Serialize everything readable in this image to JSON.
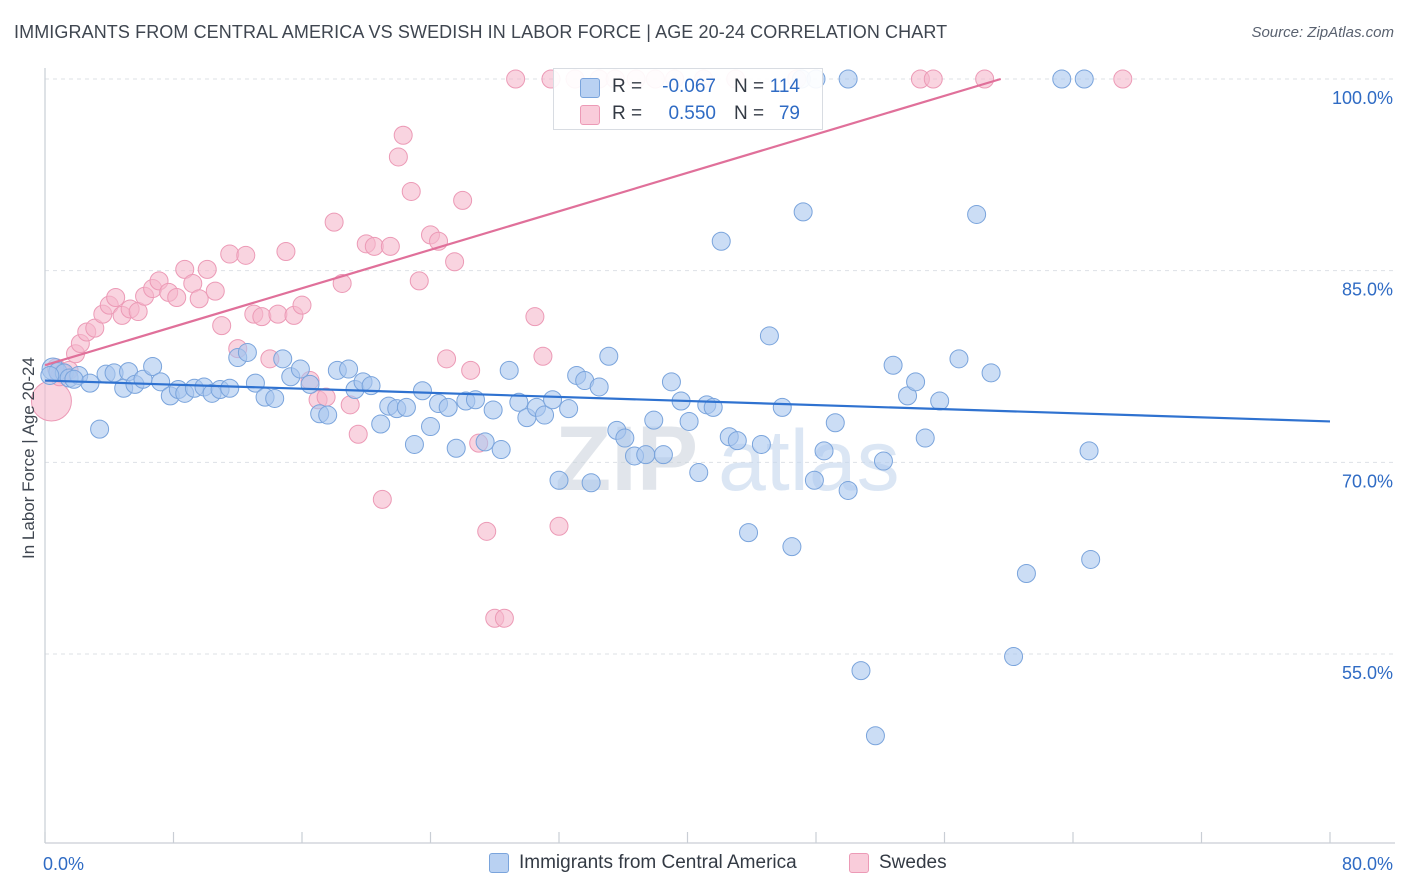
{
  "header": {
    "title": "IMMIGRANTS FROM CENTRAL AMERICA VS SWEDISH IN LABOR FORCE | AGE 20-24 CORRELATION CHART",
    "source": "Source: ZipAtlas.com"
  },
  "stats": {
    "blue": {
      "r_label": "R =",
      "r_value": "-0.067",
      "n_label": "N =",
      "n_value": "114"
    },
    "pink": {
      "r_label": "R =",
      "r_value": "0.550",
      "n_label": "N =",
      "n_value": "79"
    }
  },
  "legend": {
    "blue_label": "Immigrants from Central America",
    "pink_label": "Swedes"
  },
  "colors": {
    "blue_fill": "#a9c6ee",
    "blue_line": "#2f72d0",
    "pink_fill": "#f5b8cc",
    "pink_line": "#e0709a",
    "tick_text": "#2f6bc4"
  },
  "chart_data": {
    "type": "scatter",
    "xlabel": "",
    "ylabel": "In Labor Force | Age 20-24",
    "xlim": [
      0,
      80
    ],
    "ylim": [
      40,
      100
    ],
    "x_tick_labels": [
      {
        "value": 0,
        "label": "0.0%"
      },
      {
        "value": 80,
        "label": "80.0%"
      }
    ],
    "y_tick_labels": [
      {
        "value": 100,
        "label": "100.0%"
      },
      {
        "value": 85,
        "label": "85.0%"
      },
      {
        "value": 70,
        "label": "70.0%"
      },
      {
        "value": 55,
        "label": "55.0%"
      }
    ],
    "grid": "horizontal dashed",
    "watermark": "ZIPatlas",
    "series": [
      {
        "name": "Immigrants from Central America",
        "color": "#a9c6ee",
        "trend": {
          "x": [
            0,
            80
          ],
          "y": [
            76.4,
            73.2
          ]
        },
        "points": [
          [
            0.5,
            77.3
          ],
          [
            0.8,
            77.1
          ],
          [
            1.2,
            77.0
          ],
          [
            1.5,
            76.6
          ],
          [
            2.1,
            76.8
          ],
          [
            2.8,
            76.2
          ],
          [
            3.4,
            72.6
          ],
          [
            3.8,
            76.9
          ],
          [
            4.3,
            77.0
          ],
          [
            4.9,
            75.8
          ],
          [
            5.2,
            77.1
          ],
          [
            5.6,
            76.1
          ],
          [
            6.1,
            76.5
          ],
          [
            6.7,
            77.5
          ],
          [
            7.2,
            76.3
          ],
          [
            7.8,
            75.2
          ],
          [
            8.3,
            75.7
          ],
          [
            8.7,
            75.4
          ],
          [
            9.3,
            75.8
          ],
          [
            9.9,
            75.9
          ],
          [
            10.4,
            75.4
          ],
          [
            10.9,
            75.7
          ],
          [
            11.5,
            75.8
          ],
          [
            12.0,
            78.2
          ],
          [
            12.6,
            78.6
          ],
          [
            13.1,
            76.2
          ],
          [
            13.7,
            75.1
          ],
          [
            14.3,
            75.0
          ],
          [
            14.8,
            78.1
          ],
          [
            15.3,
            76.7
          ],
          [
            15.9,
            77.3
          ],
          [
            16.5,
            76.1
          ],
          [
            17.1,
            73.8
          ],
          [
            17.6,
            73.7
          ],
          [
            18.2,
            77.2
          ],
          [
            18.9,
            77.3
          ],
          [
            19.3,
            75.7
          ],
          [
            19.8,
            76.3
          ],
          [
            20.3,
            76.0
          ],
          [
            20.9,
            73.0
          ],
          [
            21.4,
            74.4
          ],
          [
            21.9,
            74.2
          ],
          [
            22.5,
            74.3
          ],
          [
            23.0,
            71.4
          ],
          [
            23.5,
            75.6
          ],
          [
            24.0,
            72.8
          ],
          [
            24.5,
            74.6
          ],
          [
            25.1,
            74.3
          ],
          [
            25.6,
            71.1
          ],
          [
            26.2,
            74.8
          ],
          [
            26.8,
            74.9
          ],
          [
            27.4,
            71.6
          ],
          [
            27.9,
            74.1
          ],
          [
            28.4,
            71.0
          ],
          [
            28.9,
            77.2
          ],
          [
            29.5,
            74.7
          ],
          [
            30.0,
            73.5
          ],
          [
            30.6,
            74.3
          ],
          [
            31.1,
            73.7
          ],
          [
            31.6,
            74.9
          ],
          [
            32.0,
            68.6
          ],
          [
            32.6,
            74.2
          ],
          [
            33.1,
            76.8
          ],
          [
            33.6,
            76.4
          ],
          [
            34.0,
            68.4
          ],
          [
            34.5,
            75.9
          ],
          [
            35.1,
            78.3
          ],
          [
            35.6,
            72.5
          ],
          [
            36.1,
            71.9
          ],
          [
            36.7,
            70.5
          ],
          [
            37.4,
            70.6
          ],
          [
            37.9,
            73.3
          ],
          [
            38.5,
            70.6
          ],
          [
            39.0,
            76.3
          ],
          [
            39.6,
            74.8
          ],
          [
            40.1,
            73.2
          ],
          [
            40.7,
            69.2
          ],
          [
            41.2,
            74.5
          ],
          [
            41.6,
            74.3
          ],
          [
            42.1,
            87.3
          ],
          [
            42.6,
            72.0
          ],
          [
            43.1,
            71.7
          ],
          [
            43.8,
            64.5
          ],
          [
            44.6,
            71.4
          ],
          [
            45.1,
            79.9
          ],
          [
            45.9,
            74.3
          ],
          [
            46.5,
            63.4
          ],
          [
            47.2,
            89.6
          ],
          [
            47.9,
            68.6
          ],
          [
            48.5,
            70.9
          ],
          [
            49.2,
            73.1
          ],
          [
            50.0,
            67.8
          ],
          [
            50.8,
            53.7
          ],
          [
            51.7,
            48.6
          ],
          [
            52.2,
            70.1
          ],
          [
            52.8,
            77.6
          ],
          [
            53.7,
            75.2
          ],
          [
            54.2,
            76.3
          ],
          [
            54.8,
            71.9
          ],
          [
            55.7,
            74.8
          ],
          [
            56.9,
            78.1
          ],
          [
            58.0,
            89.4
          ],
          [
            58.9,
            77.0
          ],
          [
            60.3,
            54.8
          ],
          [
            61.1,
            61.3
          ],
          [
            63.3,
            100.0
          ],
          [
            64.7,
            100.0
          ],
          [
            65.0,
            70.9
          ],
          [
            65.1,
            62.4
          ],
          [
            47.1,
            100.0
          ],
          [
            50.0,
            100.0
          ],
          [
            48.0,
            100.0
          ],
          [
            0.3,
            76.8
          ],
          [
            1.8,
            76.5
          ]
        ]
      },
      {
        "name": "Swedes",
        "color": "#f5b8cc",
        "trend": {
          "x": [
            0,
            59.5
          ],
          "y": [
            77.6,
            100.0
          ]
        },
        "points": [
          [
            0.4,
            74.8
          ],
          [
            0.7,
            77.4
          ],
          [
            1.1,
            77.0
          ],
          [
            1.5,
            77.2
          ],
          [
            1.9,
            78.5
          ],
          [
            2.2,
            79.3
          ],
          [
            2.6,
            80.2
          ],
          [
            3.1,
            80.5
          ],
          [
            3.6,
            81.6
          ],
          [
            4.0,
            82.3
          ],
          [
            4.4,
            82.9
          ],
          [
            4.8,
            81.5
          ],
          [
            5.3,
            82.0
          ],
          [
            5.8,
            81.8
          ],
          [
            6.2,
            83.0
          ],
          [
            6.7,
            83.6
          ],
          [
            7.1,
            84.2
          ],
          [
            7.7,
            83.3
          ],
          [
            8.2,
            82.9
          ],
          [
            8.7,
            85.1
          ],
          [
            9.2,
            84.0
          ],
          [
            9.6,
            82.8
          ],
          [
            10.1,
            85.1
          ],
          [
            10.6,
            83.4
          ],
          [
            11.0,
            80.7
          ],
          [
            11.5,
            86.3
          ],
          [
            12.0,
            78.9
          ],
          [
            12.5,
            86.2
          ],
          [
            13.0,
            81.6
          ],
          [
            13.5,
            81.4
          ],
          [
            14.0,
            78.1
          ],
          [
            14.5,
            81.6
          ],
          [
            15.0,
            86.5
          ],
          [
            15.5,
            81.5
          ],
          [
            16.0,
            82.3
          ],
          [
            16.5,
            76.4
          ],
          [
            17.0,
            74.9
          ],
          [
            17.5,
            75.1
          ],
          [
            18.0,
            88.8
          ],
          [
            18.5,
            84.0
          ],
          [
            19.0,
            74.5
          ],
          [
            19.5,
            72.2
          ],
          [
            20.0,
            87.1
          ],
          [
            20.5,
            86.9
          ],
          [
            21.0,
            67.1
          ],
          [
            21.5,
            86.9
          ],
          [
            22.0,
            93.9
          ],
          [
            22.3,
            95.6
          ],
          [
            22.8,
            91.2
          ],
          [
            23.3,
            84.2
          ],
          [
            24.0,
            87.8
          ],
          [
            24.5,
            87.3
          ],
          [
            25.0,
            78.1
          ],
          [
            25.5,
            85.7
          ],
          [
            26.0,
            90.5
          ],
          [
            26.5,
            77.2
          ],
          [
            27.0,
            71.5
          ],
          [
            27.5,
            64.6
          ],
          [
            28.0,
            57.8
          ],
          [
            28.6,
            57.8
          ],
          [
            29.3,
            100.0
          ],
          [
            30.5,
            81.4
          ],
          [
            31.0,
            78.3
          ],
          [
            31.5,
            100.0
          ],
          [
            32.0,
            65.0
          ],
          [
            33.0,
            100.0
          ],
          [
            34.5,
            100.0
          ],
          [
            35.5,
            100.0
          ],
          [
            36.8,
            100.0
          ],
          [
            38.0,
            100.0
          ],
          [
            39.2,
            100.0
          ],
          [
            41.0,
            100.0
          ],
          [
            43.0,
            100.0
          ],
          [
            46.8,
            100.0
          ],
          [
            54.5,
            100.0
          ],
          [
            55.3,
            100.0
          ],
          [
            58.5,
            100.0
          ],
          [
            67.1,
            100.0
          ],
          [
            0.9,
            76.7
          ]
        ]
      }
    ]
  }
}
